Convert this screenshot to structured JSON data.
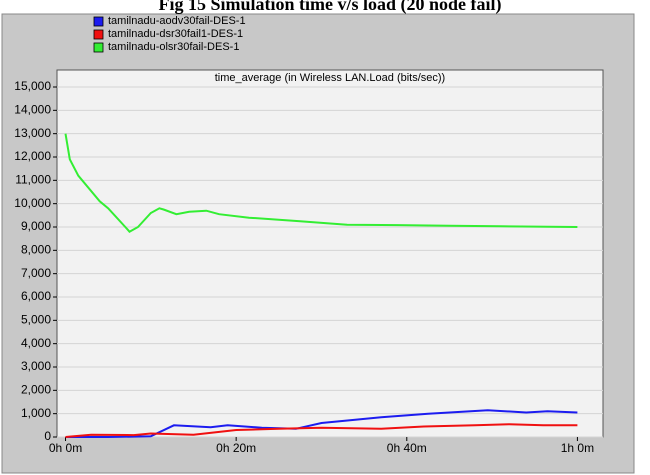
{
  "chart_data": {
    "type": "line",
    "title": "Fig 15 Simulation time v/s load (20 node fail)",
    "subtitle": "time_average (in Wireless LAN.Load (bits/sec))",
    "xlim": [
      -1,
      63
    ],
    "xticks": [
      {
        "value": 0,
        "label": "0h 0m"
      },
      {
        "value": 20,
        "label": "0h 20m"
      },
      {
        "value": 40,
        "label": "0h 40m"
      },
      {
        "value": 60,
        "label": "1h 0m"
      }
    ],
    "ylim": [
      0,
      15000
    ],
    "yticks": [
      0,
      {
        "value": 1000,
        "label": "1,000"
      },
      {
        "value": 2000,
        "label": "2,000"
      },
      {
        "value": 3000,
        "label": "3,000"
      },
      {
        "value": 4000,
        "label": "4,000"
      },
      {
        "value": 5000,
        "label": "5,000"
      },
      {
        "value": 6000,
        "label": "6,000"
      },
      {
        "value": 7000,
        "label": "7,000"
      },
      {
        "value": 8000,
        "label": "8,000"
      },
      {
        "value": 9000,
        "label": "9,000"
      },
      {
        "value": 10000,
        "label": "10,000"
      },
      {
        "value": 11000,
        "label": "11,000"
      },
      {
        "value": 12000,
        "label": "12,000"
      },
      {
        "value": 13000,
        "label": "13,000"
      },
      {
        "value": 14000,
        "label": "14,000"
      },
      {
        "value": 15000,
        "label": "15,000"
      }
    ],
    "grid": true,
    "series": [
      {
        "name": "tamilnadu-aodv30fail-DES-1",
        "color": "#1c1cf0",
        "x": [
          0,
          5,
          10,
          12.7,
          17,
          19,
          23,
          27,
          30,
          37,
          42.5,
          49.5,
          54,
          56.5,
          60
        ],
        "values": [
          0,
          0,
          30,
          500,
          420,
          500,
          400,
          350,
          600,
          850,
          1000,
          1150,
          1050,
          1100,
          1050
        ]
      },
      {
        "name": "tamilnadu-dsr30fail1-DES-1",
        "color": "#f01010",
        "x": [
          0,
          3,
          8,
          10,
          15,
          20,
          25,
          30,
          37,
          42,
          48,
          52,
          56,
          60
        ],
        "values": [
          0,
          100,
          80,
          150,
          100,
          300,
          350,
          400,
          350,
          450,
          500,
          550,
          500,
          500
        ]
      },
      {
        "name": "tamilnadu-olsr30fail-DES-1",
        "color": "#33ee33",
        "x": [
          0,
          0.5,
          1.5,
          4,
          5,
          7,
          7.5,
          8.5,
          10,
          11,
          11.5,
          13,
          14.5,
          16.5,
          18,
          21.5,
          27.5,
          33,
          39,
          45,
          51,
          56.5,
          60
        ],
        "values": [
          13000,
          11900,
          11200,
          10100,
          9800,
          9000,
          8800,
          9000,
          9600,
          9800,
          9750,
          9550,
          9650,
          9700,
          9550,
          9400,
          9250,
          9100,
          9080,
          9050,
          9030,
          9010,
          9000
        ]
      }
    ]
  }
}
